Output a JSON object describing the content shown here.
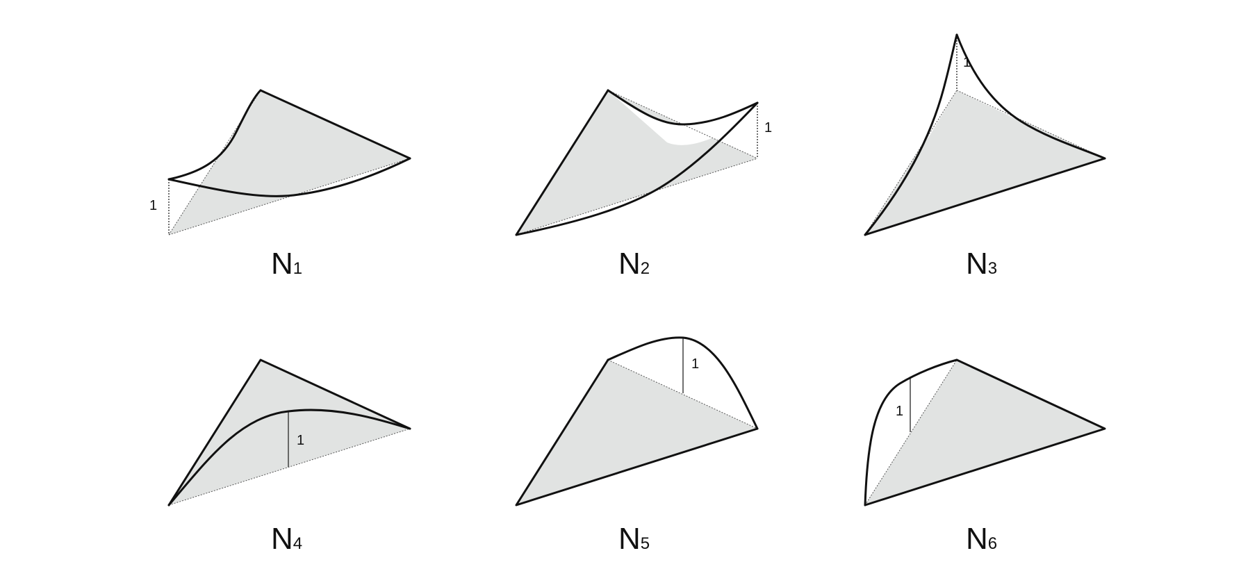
{
  "panels": [
    {
      "id": "n1",
      "label": "N",
      "sub": "1",
      "unit_label": "1"
    },
    {
      "id": "n2",
      "label": "N",
      "sub": "2",
      "unit_label": "1"
    },
    {
      "id": "n3",
      "label": "N",
      "sub": "3",
      "unit_label": "1"
    },
    {
      "id": "n4",
      "label": "N",
      "sub": "4",
      "unit_label": "1"
    },
    {
      "id": "n5",
      "label": "N",
      "sub": "5",
      "unit_label": "1"
    },
    {
      "id": "n6",
      "label": "N",
      "sub": "6",
      "unit_label": "1"
    }
  ],
  "colors": {
    "triangle_fill": "#e1e3e2",
    "edge": "#111111",
    "background": "#ffffff"
  }
}
